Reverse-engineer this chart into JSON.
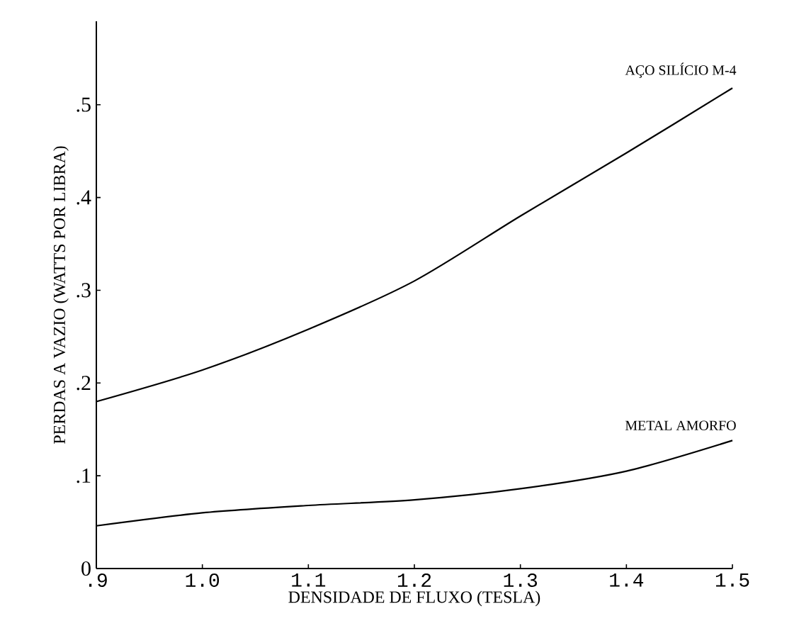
{
  "chart_data": {
    "type": "line",
    "xlabel": "DENSIDADE DE FLUXO (TESLA)",
    "ylabel": "PERDAS A VAZIO (WATTS POR LIBRA)",
    "x": [
      0.9,
      1.0,
      1.1,
      1.2,
      1.3,
      1.4,
      1.5
    ],
    "series": [
      {
        "name": "AÇO SILÍCIO M-4",
        "color": "#000000",
        "values": [
          0.18,
          0.214,
          0.258,
          0.31,
          0.38,
          0.448,
          0.518
        ]
      },
      {
        "name": "METAL AMORFO",
        "color": "#000000",
        "values": [
          0.046,
          0.06,
          0.068,
          0.074,
          0.086,
          0.105,
          0.138
        ]
      }
    ],
    "xlim": [
      0.9,
      1.5
    ],
    "ylim": [
      0,
      0.59
    ],
    "xticks": [
      {
        "value": 0.9,
        "label": ".9"
      },
      {
        "value": 1.0,
        "label": "1.0"
      },
      {
        "value": 1.1,
        "label": "1.1"
      },
      {
        "value": 1.2,
        "label": "1.2"
      },
      {
        "value": 1.3,
        "label": "1.3"
      },
      {
        "value": 1.4,
        "label": "1.4"
      },
      {
        "value": 1.5,
        "label": "1.5"
      }
    ],
    "yticks": [
      0,
      {
        "value": 0.1,
        "label": ".1"
      },
      {
        "value": 0.2,
        "label": ".2"
      },
      {
        "value": 0.3,
        "label": ".3"
      },
      {
        "value": 0.4,
        "label": ".4"
      },
      {
        "value": 0.5,
        "label": ".5"
      }
    ],
    "grid": false,
    "marker": "none",
    "line_style": "solid"
  }
}
